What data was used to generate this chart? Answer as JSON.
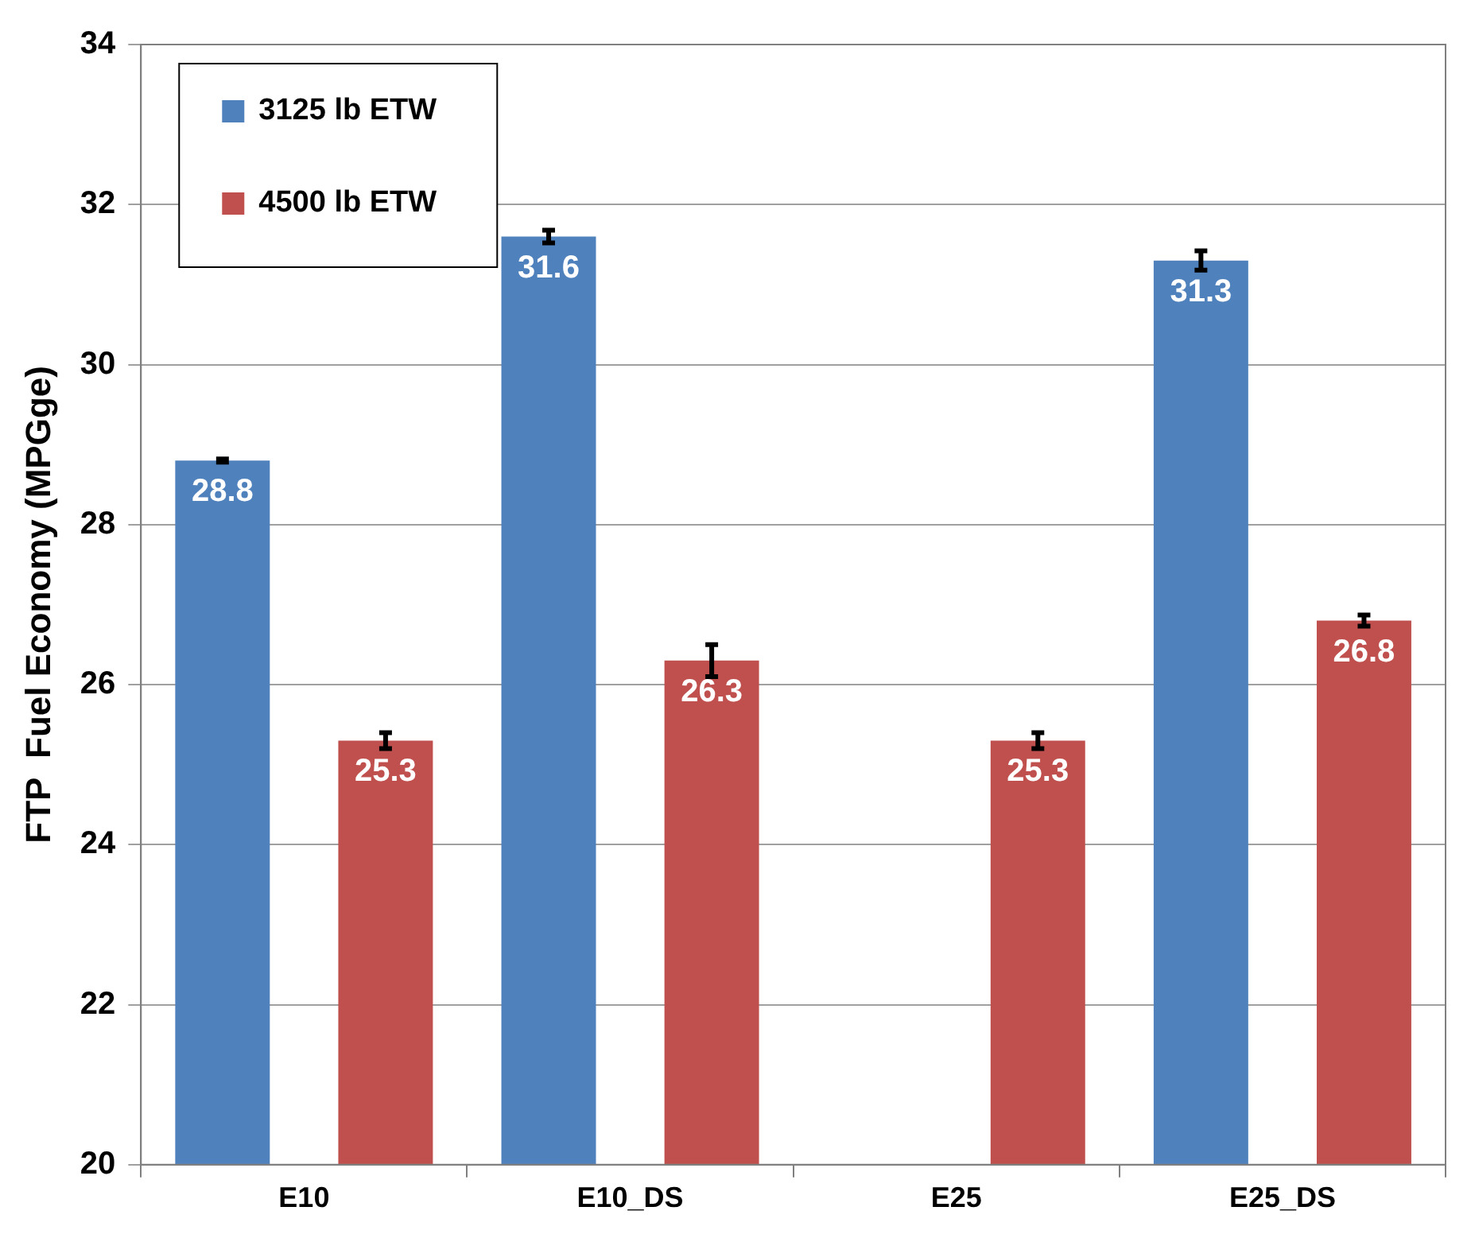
{
  "chart_data": {
    "type": "bar",
    "ylabel": "FTP  Fuel Economy (MPGge)",
    "categories": [
      "E10",
      "E10_DS",
      "E25",
      "E25_DS"
    ],
    "series": [
      {
        "name": "3125 lb ETW",
        "color": "#4f81bd",
        "values": [
          28.8,
          31.6,
          null,
          31.3
        ],
        "errors": [
          0.02,
          0.08,
          null,
          0.12
        ]
      },
      {
        "name": "4500 lb ETW",
        "color": "#c0504d",
        "values": [
          25.3,
          26.3,
          25.3,
          26.8
        ],
        "errors": [
          0.1,
          0.2,
          0.1,
          0.07
        ]
      }
    ],
    "ylim": [
      20,
      34
    ],
    "yticks": [
      20,
      22,
      24,
      26,
      28,
      30,
      32,
      34
    ],
    "grid": "y",
    "legend": "top left",
    "data_labels": true
  }
}
